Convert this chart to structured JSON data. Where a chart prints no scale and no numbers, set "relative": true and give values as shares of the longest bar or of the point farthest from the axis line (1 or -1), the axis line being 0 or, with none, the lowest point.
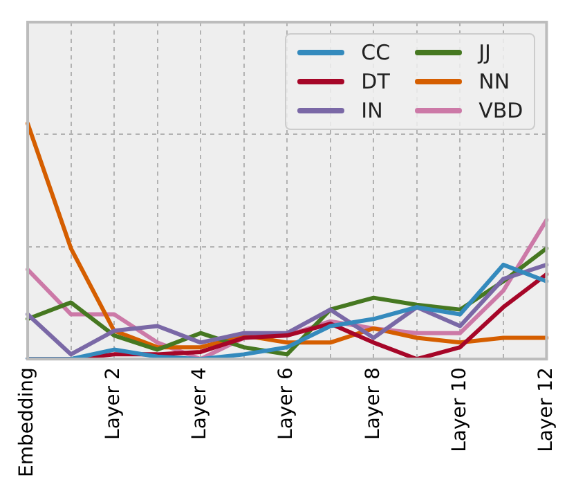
{
  "chart_data": {
    "type": "line",
    "relative": true,
    "grid": true,
    "legend": "top right",
    "marker": "none",
    "line_style": "solid",
    "categories": [
      "Embedding",
      null,
      "Layer 2",
      null,
      "Layer 4",
      null,
      "Layer 6",
      null,
      "Layer 8",
      null,
      "Layer 10",
      null,
      "Layer 12"
    ],
    "series": [
      {
        "name": "CC",
        "color": "#348abd",
        "values": [
          0,
          0,
          0.04,
          0.01,
          0,
          0.02,
          0.05,
          0.14,
          0.17,
          0.22,
          0.19,
          0.4,
          0.33
        ]
      },
      {
        "name": "DT",
        "color": "#a60628",
        "values": [
          0,
          0,
          0.02,
          0.02,
          0.03,
          0.09,
          0.1,
          0.15,
          0.07,
          0,
          0.05,
          0.22,
          0.36
        ]
      },
      {
        "name": "IN",
        "color": "#7a68a6",
        "values": [
          0.19,
          0.02,
          0.12,
          0.14,
          0.07,
          0.11,
          0.11,
          0.21,
          0.09,
          0.22,
          0.14,
          0.34,
          0.4
        ]
      },
      {
        "name": "JJ",
        "color": "#467821",
        "values": [
          0.17,
          0.24,
          0.1,
          0.04,
          0.11,
          0.05,
          0.02,
          0.21,
          0.26,
          0.23,
          0.21,
          0.33,
          0.47
        ]
      },
      {
        "name": "NN",
        "color": "#d55e00",
        "values": [
          1,
          0.47,
          0.12,
          0.05,
          0.05,
          0.1,
          0.07,
          0.07,
          0.13,
          0.09,
          0.07,
          0.09,
          0.09
        ]
      },
      {
        "name": "VBD",
        "color": "#cc79a7",
        "values": [
          0.38,
          0.19,
          0.19,
          0.07,
          0,
          0.09,
          0.1,
          0.16,
          0.13,
          0.11,
          0.11,
          0.29,
          0.59
        ]
      }
    ]
  }
}
